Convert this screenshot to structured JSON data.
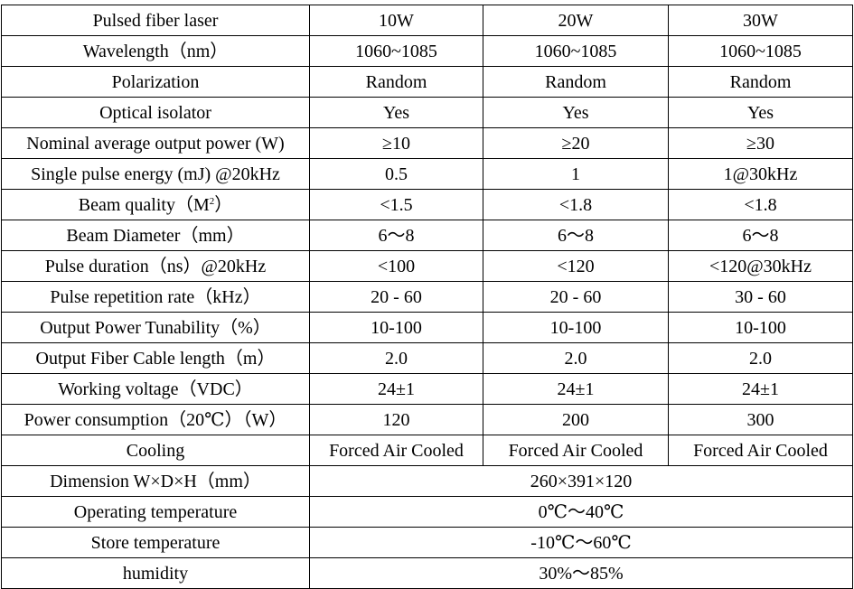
{
  "table": {
    "header": {
      "label": "Pulsed fiber laser",
      "models": [
        "10W",
        "20W",
        "30W"
      ]
    },
    "rows": [
      {
        "label": "Wavelength（nm）",
        "values": [
          "1060~1085",
          "1060~1085",
          "1060~1085"
        ]
      },
      {
        "label": "Polarization",
        "values": [
          "Random",
          "Random",
          "Random"
        ]
      },
      {
        "label": "Optical isolator",
        "values": [
          "Yes",
          "Yes",
          "Yes"
        ]
      },
      {
        "label": "Nominal average output power (W)",
        "values": [
          "≥10",
          "≥20",
          "≥30"
        ]
      },
      {
        "label": "Single pulse energy (mJ) @20kHz",
        "values": [
          "0.5",
          "1",
          "1@30kHz"
        ]
      },
      {
        "label_main": "Beam quality（M",
        "label_sup": "2",
        "label_end": "）",
        "values": [
          "<1.5",
          "<1.8",
          "<1.8"
        ]
      },
      {
        "label": "Beam Diameter（mm）",
        "values": [
          "6～8",
          "6～8",
          "6～8"
        ]
      },
      {
        "label": "Pulse duration（ns）@20kHz",
        "values": [
          "<100",
          "<120",
          "<120@30kHz"
        ]
      },
      {
        "label": "Pulse repetition rate（kHz）",
        "values": [
          "20 - 60",
          "20 - 60",
          "30 - 60"
        ]
      },
      {
        "label": "Output Power Tunability（%）",
        "values": [
          "10-100",
          "10-100",
          "10-100"
        ]
      },
      {
        "label": "Output Fiber Cable length（m）",
        "values": [
          "2.0",
          "2.0",
          "2.0"
        ]
      },
      {
        "label": "Working voltage（VDC）",
        "values": [
          "24±1",
          "24±1",
          "24±1"
        ]
      },
      {
        "label": "Power consumption（20℃）（W）",
        "values": [
          "120",
          "200",
          "300"
        ]
      },
      {
        "label": "Cooling",
        "values": [
          "Forced Air Cooled",
          "Forced Air Cooled",
          "Forced Air Cooled"
        ]
      },
      {
        "label": "Dimension W×D×H（mm）",
        "value": "260×391×120"
      },
      {
        "label": "Operating temperature",
        "value": "0℃～40℃"
      },
      {
        "label": "Store temperature",
        "value": "-10℃～60℃"
      },
      {
        "label": "humidity",
        "value": "30%～85%"
      }
    ]
  }
}
